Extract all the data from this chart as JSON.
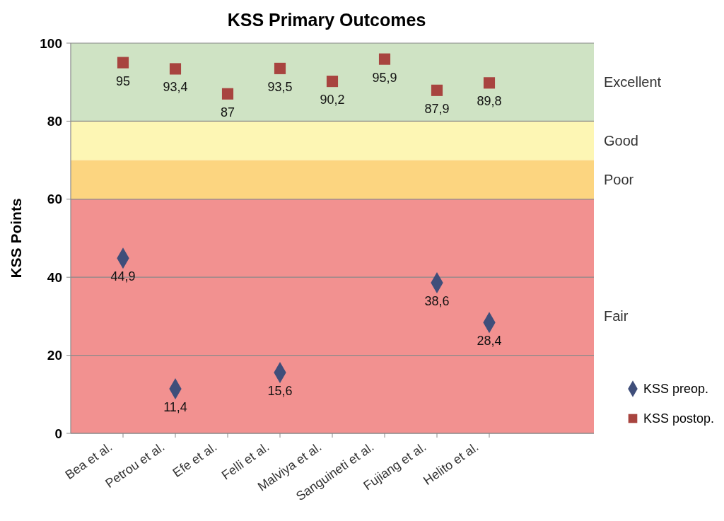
{
  "chart_data": {
    "type": "scatter",
    "title": "KSS Primary Outcomes",
    "ylabel": "KSS Points",
    "categories": [
      "Bea et al.",
      "Petrou et al.",
      "Efe et al.",
      "Felli et al.",
      "Malviya et al.",
      "Sanguineti et al.",
      "Fujiang et al.",
      "Helito et al."
    ],
    "series": [
      {
        "name": "KSS preop.",
        "color": "#3f4e7a",
        "marker": "diamond",
        "values": [
          44.9,
          11.4,
          null,
          15.6,
          null,
          null,
          38.6,
          28.4
        ],
        "value_labels": [
          "44,9",
          "11,4",
          null,
          "15,6",
          null,
          null,
          "38,6",
          "28,4"
        ]
      },
      {
        "name": "KSS postop.",
        "color": "#a8443f",
        "marker": "square",
        "values": [
          95,
          93.4,
          87,
          93.5,
          90.2,
          95.9,
          87.9,
          89.8
        ],
        "value_labels": [
          "95",
          "93,4",
          "87",
          "93,5",
          "90,2",
          "95,9",
          "87,9",
          "89,8"
        ]
      }
    ],
    "bands": [
      {
        "axis": "y",
        "from": 80,
        "to": 100,
        "label": "Excellent",
        "color": "#cfe3c4"
      },
      {
        "axis": "y",
        "from": 70,
        "to": 80,
        "label": "Good",
        "color": "#fdf6b4"
      },
      {
        "axis": "y",
        "from": 60,
        "to": 70,
        "label": "Poor",
        "color": "#fcd580"
      },
      {
        "axis": "y",
        "from": 0,
        "to": 60,
        "label": "Fair",
        "color": "#f29190"
      }
    ],
    "ylim": [
      0,
      100
    ],
    "yticks": [
      0,
      20,
      40,
      60,
      80,
      100
    ],
    "grid": "y",
    "legend": "right"
  }
}
